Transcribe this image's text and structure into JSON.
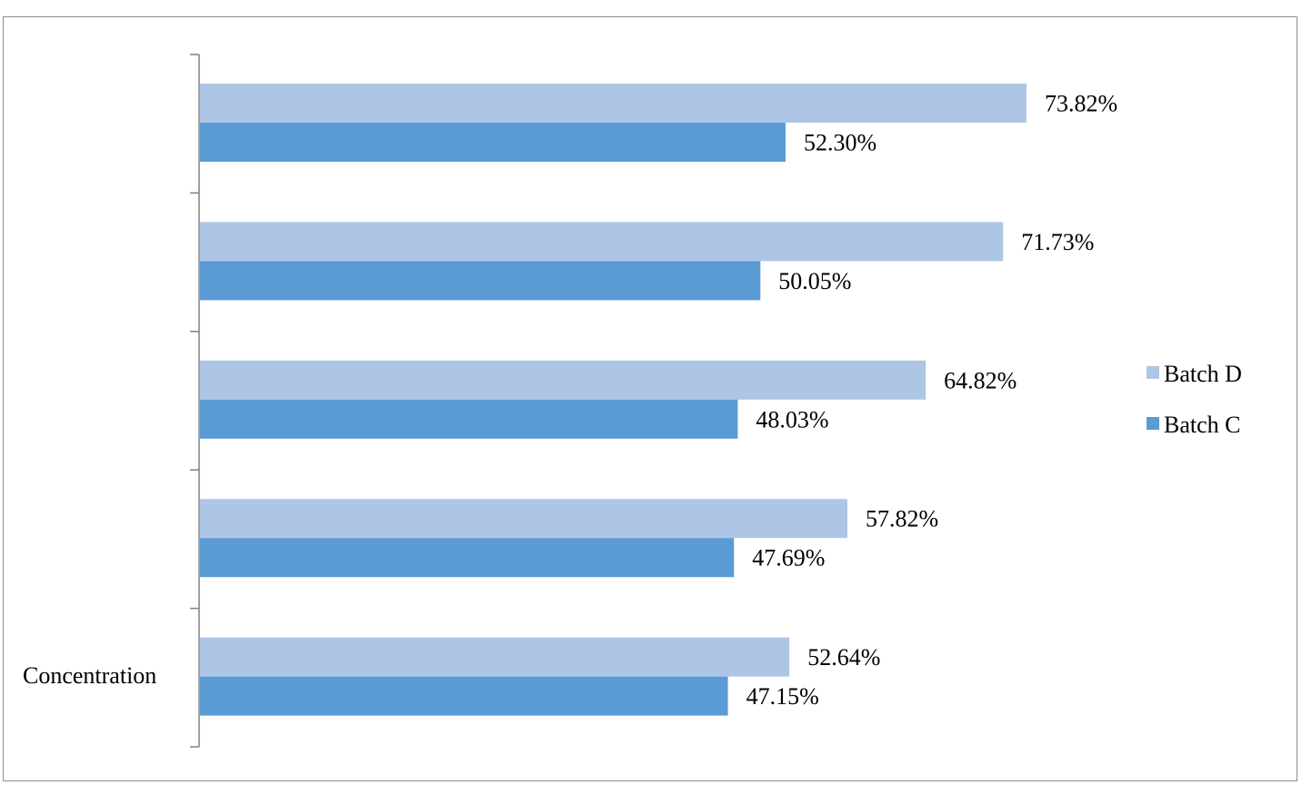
{
  "chart_data": {
    "type": "bar",
    "orientation": "horizontal",
    "title": "",
    "category_axis_label": "Concentration",
    "categories": [
      "",
      "",
      "",
      "",
      ""
    ],
    "series": [
      {
        "name": "Batch D",
        "values": [
          73.82,
          71.73,
          64.82,
          57.82,
          52.64
        ],
        "labels": [
          "73.82%",
          "71.73%",
          "64.82%",
          "57.82%",
          "52.64%"
        ],
        "color": "#aec6e6"
      },
      {
        "name": "Batch C",
        "values": [
          52.3,
          50.05,
          48.03,
          47.69,
          47.15
        ],
        "labels": [
          "52.30%",
          "50.05%",
          "48.03%",
          "47.69%",
          "47.15%"
        ],
        "color": "#5b9bd5"
      }
    ],
    "value_unit": "%",
    "xlim": [
      0,
      100
    ],
    "value_axis_visible": false,
    "grid": false,
    "legend_position": "right"
  }
}
